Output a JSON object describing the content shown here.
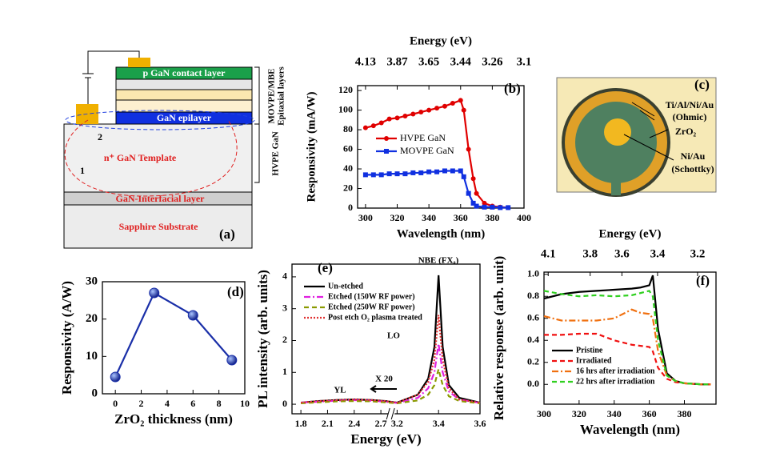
{
  "diagram_a": {
    "label": "(a)",
    "layers": [
      "p GaN contact layer",
      "GaN epilayer",
      "n⁺ GaN Template",
      "GaN-Interfacial layer",
      "Sapphire Substrate"
    ],
    "paths": [
      "1",
      "2"
    ],
    "side_labels": [
      "MOVPE/MBE",
      "Epitaxial layers",
      "HVPE GaN"
    ]
  },
  "photo_c": {
    "label": "(c)",
    "callouts": [
      "Ti/Al/Ni/Au",
      "(Ohmic)",
      "ZrO₂",
      "Ni/Au",
      "(Schottky)"
    ]
  },
  "chart_data": [
    {
      "type": "line",
      "label": "(b)",
      "x_label": "Wavelength (nm)",
      "y_label": "Responsivity (mA/W)",
      "x2_label": "Energy (eV)",
      "x": [
        300,
        305,
        310,
        315,
        320,
        325,
        330,
        335,
        340,
        345,
        350,
        355,
        360,
        362,
        365,
        368,
        370,
        375,
        380,
        385,
        390
      ],
      "series": [
        {
          "name": "HVPE GaN",
          "color": "#e00000",
          "marker": "circle",
          "style": "solid",
          "values": [
            82,
            84,
            87,
            91,
            92,
            94,
            96,
            98,
            100,
            102,
            104,
            107,
            110,
            100,
            60,
            30,
            15,
            5,
            2,
            1,
            0.5
          ]
        },
        {
          "name": "MOVPE GaN",
          "color": "#1030e0",
          "marker": "square",
          "style": "solid",
          "values": [
            34,
            34,
            34,
            35,
            35,
            35,
            36,
            36,
            37,
            37,
            38,
            38,
            38,
            32,
            15,
            5,
            2,
            1,
            1,
            0.5,
            0.5
          ]
        }
      ],
      "xlim": [
        295,
        400
      ],
      "xticks": [
        300,
        320,
        340,
        360,
        380,
        400
      ],
      "x2ticks": [
        {
          "value": 300,
          "label": "4.13"
        },
        {
          "value": 320,
          "label": "3.87"
        },
        {
          "value": 340,
          "label": "3.65"
        },
        {
          "value": 360,
          "label": "3.44"
        },
        {
          "value": 380,
          "label": "3.26"
        },
        {
          "value": 400,
          "label": "3.1"
        }
      ],
      "ylim": [
        0,
        125
      ],
      "yticks": [
        0,
        20,
        40,
        60,
        80,
        100,
        120
      ],
      "legend": "center left"
    },
    {
      "type": "line",
      "label": "(d)",
      "x_label": "ZrO₂ thickness (nm)",
      "y_label": "Responsivity (A/W)",
      "x": [
        0,
        3,
        6,
        9
      ],
      "values": [
        4.5,
        27,
        21,
        9
      ],
      "color": "#1a2fa8",
      "marker": "ball",
      "style": "solid",
      "xlim": [
        -1,
        10
      ],
      "xticks": [
        0,
        2,
        4,
        6,
        8,
        10
      ],
      "ylim": [
        0,
        30
      ],
      "yticks": [
        0,
        10,
        20,
        30
      ]
    },
    {
      "type": "line",
      "label": "(e)",
      "x_label": "Energy (eV)",
      "y_label": "PL intensity (arb. units)",
      "annotations": [
        "NBE (FXₐ)",
        "LO",
        "YL",
        "X 20"
      ],
      "x": [
        1.8,
        2.0,
        2.2,
        2.4,
        2.6,
        2.75,
        3.2,
        3.3,
        3.35,
        3.38,
        3.4,
        3.42,
        3.45,
        3.5,
        3.6
      ],
      "series": [
        {
          "name": "Un-etched",
          "color": "#000000",
          "style": "solid",
          "marker": "none",
          "values": [
            0.05,
            0.1,
            0.13,
            0.15,
            0.13,
            0.1,
            0.05,
            0.3,
            0.8,
            1.8,
            4.05,
            1.8,
            0.6,
            0.2,
            0.05
          ]
        },
        {
          "name": "Etched (150W RF power)",
          "color": "#e020e0",
          "style": "dash-dot",
          "marker": "none",
          "values": [
            0.05,
            0.08,
            0.11,
            0.13,
            0.11,
            0.08,
            0.04,
            0.2,
            0.5,
            1.0,
            1.9,
            1.0,
            0.4,
            0.15,
            0.04
          ]
        },
        {
          "name": "Etched (250W RF power)",
          "color": "#8a9a00",
          "style": "dashed",
          "marker": "none",
          "values": [
            0.03,
            0.06,
            0.09,
            0.1,
            0.09,
            0.06,
            0.03,
            0.12,
            0.3,
            0.6,
            1.1,
            0.6,
            0.25,
            0.1,
            0.03
          ]
        },
        {
          "name": "Post etch O₂ plasma treated",
          "color": "#e03030",
          "style": "dotted",
          "marker": "none",
          "values": [
            0.05,
            0.1,
            0.13,
            0.15,
            0.13,
            0.1,
            0.05,
            0.3,
            0.7,
            1.4,
            2.8,
            1.4,
            0.5,
            0.15,
            0.05
          ]
        }
      ],
      "xlim": [
        1.7,
        3.6
      ],
      "x_break": [
        2.8,
        3.18
      ],
      "xticks": [
        1.8,
        2.1,
        2.4,
        2.7,
        3.2,
        3.4,
        3.6
      ],
      "ylim": [
        -0.3,
        4.4
      ],
      "yticks": [
        0,
        1,
        2,
        3,
        4
      ],
      "legend": "upper left"
    },
    {
      "type": "line",
      "label": "(f)",
      "x_label": "Wavelength (nm)",
      "y_label": "Relative response (arb. unit)",
      "x2_label": "Energy (eV)",
      "x": [
        300,
        310,
        320,
        330,
        340,
        350,
        355,
        360,
        362,
        365,
        370,
        375,
        380,
        390,
        395
      ],
      "series": [
        {
          "name": "Pristine",
          "color": "#000000",
          "style": "solid",
          "marker": "none",
          "values": [
            0.78,
            0.82,
            0.84,
            0.85,
            0.86,
            0.87,
            0.88,
            0.9,
            0.99,
            0.5,
            0.1,
            0.03,
            0.01,
            0,
            0
          ]
        },
        {
          "name": "Irradiated",
          "color": "#f01010",
          "style": "dashed",
          "marker": "none",
          "values": [
            0.45,
            0.45,
            0.46,
            0.46,
            0.4,
            0.36,
            0.35,
            0.34,
            0.3,
            0.15,
            0.05,
            0.02,
            0.01,
            0,
            0
          ]
        },
        {
          "name": "16 hrs after irradiation",
          "color": "#f07010",
          "style": "dash-dot",
          "marker": "none",
          "values": [
            0.62,
            0.58,
            0.58,
            0.58,
            0.6,
            0.68,
            0.65,
            0.64,
            0.6,
            0.3,
            0.08,
            0.03,
            0.01,
            0,
            0
          ]
        },
        {
          "name": "22 hrs after irradiation",
          "color": "#30d020",
          "style": "dashed",
          "marker": "none",
          "values": [
            0.85,
            0.82,
            0.8,
            0.81,
            0.8,
            0.81,
            0.83,
            0.85,
            0.8,
            0.4,
            0.08,
            0.03,
            0.01,
            0,
            0
          ]
        }
      ],
      "xlim": [
        300,
        398
      ],
      "xticks": [
        300,
        320,
        340,
        360,
        380
      ],
      "x2ticks": [
        {
          "value": 302.4,
          "label": "4.1"
        },
        {
          "value": 326.3,
          "label": "3.8"
        },
        {
          "value": 344.4,
          "label": "3.6"
        },
        {
          "value": 364.7,
          "label": "3.4"
        },
        {
          "value": 387.5,
          "label": "3.2"
        }
      ],
      "ylim": [
        -0.18,
        1.02
      ],
      "yticks": [
        {
          "value": 0,
          "label": "0.0"
        },
        0.2,
        0.4,
        0.6,
        0.8,
        {
          "value": 1,
          "label": "1.0"
        }
      ],
      "legend": "lower left"
    }
  ]
}
